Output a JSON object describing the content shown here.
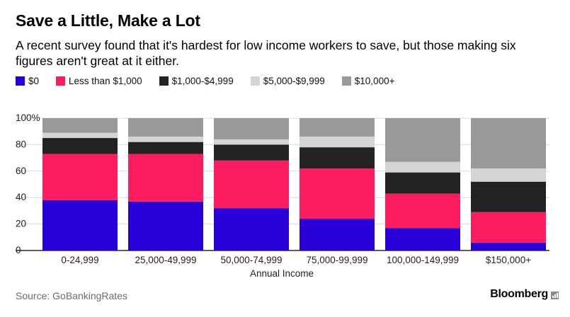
{
  "header": {
    "title": "Save a Little, Make a Lot",
    "subtitle": "A recent survey found that it's hardest for low income workers to save, but those making six figures aren't great at it either."
  },
  "footer": {
    "source": "Source: GoBankingRates",
    "brand": "Bloomberg"
  },
  "chart_data": {
    "type": "bar",
    "stacked": true,
    "title": "Save a Little, Make a Lot",
    "xlabel": "Annual Income",
    "ylabel": "",
    "ylim": [
      0,
      100
    ],
    "yticks": [
      0,
      20,
      40,
      60,
      80,
      100
    ],
    "ytick_labels": [
      "0",
      "20",
      "40",
      "60",
      "80",
      "100%"
    ],
    "grid": "horizontal",
    "legend_position": "top-left",
    "categories": [
      "0-24,999",
      "25,000-49,999",
      "50,000-74,999",
      "75,000-99,999",
      "100,000-149,999",
      "$150,000+"
    ],
    "series": [
      {
        "name": "$0",
        "color": "#2800d7",
        "values": [
          38,
          37,
          32,
          24,
          17,
          6
        ]
      },
      {
        "name": "Less than $1,000",
        "color": "#fc1c60",
        "values": [
          35,
          36,
          36,
          38,
          26,
          23
        ]
      },
      {
        "name": "$1,000-$4,999",
        "color": "#222222",
        "values": [
          12,
          9,
          12,
          16,
          16,
          23
        ]
      },
      {
        "name": "$5,000-$9,999",
        "color": "#d4d4d4",
        "values": [
          4,
          4,
          4,
          8,
          8,
          10
        ]
      },
      {
        "name": "$10,000+",
        "color": "#999999",
        "values": [
          11,
          14,
          16,
          14,
          33,
          38
        ]
      }
    ]
  }
}
